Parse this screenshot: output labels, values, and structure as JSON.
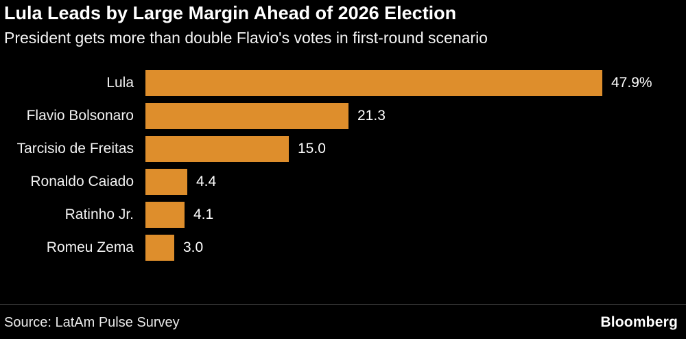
{
  "header": {
    "title": "Lula Leads by Large Margin Ahead of 2026 Election",
    "subtitle": "President gets more than double Flavio's votes in first-round scenario"
  },
  "footer": {
    "source": "Source: LatAm Pulse Survey",
    "brand": "Bloomberg"
  },
  "colors": {
    "background": "#000000",
    "bar": "#de8e2c",
    "text": "#ffffff"
  },
  "chart_data": {
    "type": "bar",
    "orientation": "horizontal",
    "title": "Lula Leads by Large Margin Ahead of 2026 Election",
    "subtitle": "President gets more than double Flavio's votes in first-round scenario",
    "categories": [
      "Lula",
      "Flavio Bolsonaro",
      "Tarcisio de Freitas",
      "Ronaldo Caiado",
      "Ratinho Jr.",
      "Romeu Zema"
    ],
    "values": [
      47.9,
      21.3,
      15.0,
      4.4,
      4.1,
      3.0
    ],
    "value_labels": [
      "47.9%",
      "21.3",
      "15.0",
      "4.4",
      "4.1",
      "3.0"
    ],
    "xlabel": "",
    "ylabel": "",
    "xlim": [
      0,
      47.9
    ],
    "grid": false,
    "legend": false,
    "unit": "percent of votes, first-round scenario"
  }
}
